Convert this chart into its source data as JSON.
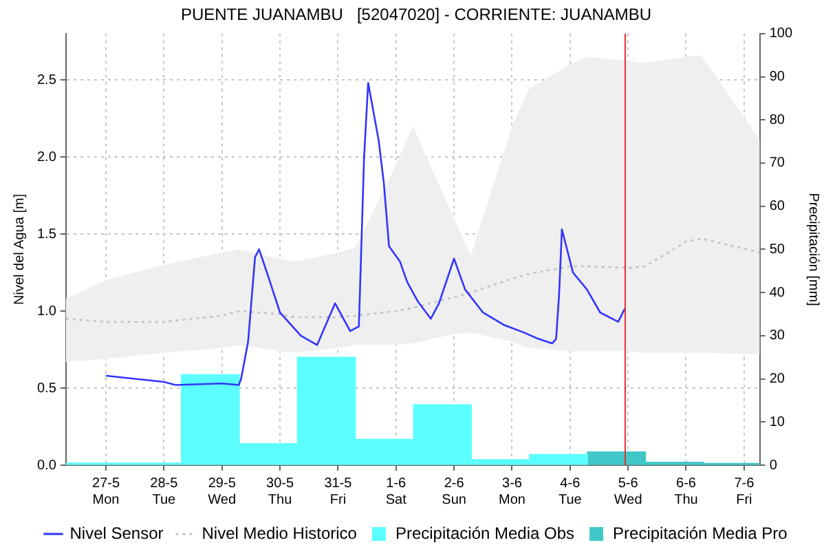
{
  "chart_data": {
    "type": "line",
    "title": "PUENTE JUANAMBU   [52047020] - CORRIENTE: JUANAMBU",
    "ylabel": "Nivel del Agua [m]",
    "y2label": "Precipitación [mm]",
    "xlim": [
      "--05-26T07:26",
      "--06-07T06:29"
    ],
    "xticks": [
      {
        "value": "--05-27",
        "label": "27-5\nMon"
      },
      {
        "value": "--05-28",
        "label": "28-5\nTue"
      },
      {
        "value": "--05-29",
        "label": "29-5\nWed"
      },
      {
        "value": "--05-30",
        "label": "30-5\nThu"
      },
      {
        "value": "--05-31",
        "label": "31-5\nFri"
      },
      {
        "value": "--06-01",
        "label": "1-6\nSat"
      },
      {
        "value": "--06-02",
        "label": "2-6\nSun"
      },
      {
        "value": "--06-03",
        "label": "3-6\nMon"
      },
      {
        "value": "--06-04",
        "label": "4-6\nTue"
      },
      {
        "value": "--06-05",
        "label": "5-6\nWed"
      },
      {
        "value": "--06-06",
        "label": "6-6\nThu"
      },
      {
        "value": "--06-07",
        "label": "7-6\nFri"
      }
    ],
    "ylim": [
      0,
      2.8
    ],
    "yticks": [
      {
        "value": 0,
        "label": "0.0"
      },
      {
        "value": 0.5,
        "label": "0.5"
      },
      {
        "value": 1,
        "label": "1.0"
      },
      {
        "value": 1.5,
        "label": "1.5"
      },
      {
        "value": 2,
        "label": "2.0"
      },
      {
        "value": 2.5,
        "label": "2.5"
      }
    ],
    "y2lim": [
      0,
      100
    ],
    "y2ticks": [
      0,
      10,
      20,
      30,
      40,
      50,
      60,
      70,
      80,
      90,
      100
    ],
    "grid": true,
    "legend": "bottom",
    "marker": "none",
    "ref_lines": [
      {
        "axis": "x",
        "value": "--06-04T22:48",
        "color": "#e03030"
      }
    ],
    "series": [
      {
        "name": "Nivel Sensor",
        "color": "#3333ff",
        "line_style": "solid",
        "x": [
          "--05-27T00:00",
          "--05-28T00:00",
          "--05-28T04:48",
          "--05-29T00:00",
          "--05-29T06:58",
          "--05-29T07:55",
          "--05-29T10:48",
          "--05-29T13:41",
          "--05-29T15:22",
          "--05-29T19:26",
          "--05-30T00:00",
          "--05-30T08:38",
          "--05-30T15:22",
          "--05-30T22:48",
          "--05-31T05:02",
          "--05-31T08:38",
          "--05-31T10:48",
          "--05-31T12:29",
          "--05-31T16:48",
          "--05-31T18:58",
          "--05-31T21:07",
          "--06-01T01:41",
          "--06-01T04:34",
          "--06-01T09:07",
          "--06-01T14:24",
          "--06-01T17:46",
          "--06-02T00:00",
          "--06-02T04:34",
          "--06-02T12:00",
          "--06-02T20:38",
          "--06-03T05:02",
          "--06-03T10:48",
          "--06-03T16:34",
          "--06-03T18:14",
          "--06-03T19:26",
          "--06-03T20:38",
          "--06-04T01:12",
          "--06-04T06:58",
          "--06-04T12:29",
          "--06-04T19:55",
          "--06-04T22:48"
        ],
        "values": [
          0.58,
          0.54,
          0.52,
          0.53,
          0.52,
          0.56,
          0.8,
          1.35,
          1.4,
          1.21,
          0.99,
          0.84,
          0.78,
          1.05,
          0.87,
          0.9,
          2.0,
          2.48,
          2.11,
          1.83,
          1.42,
          1.32,
          1.19,
          1.06,
          0.95,
          1.05,
          1.34,
          1.14,
          0.99,
          0.91,
          0.86,
          0.82,
          0.79,
          0.82,
          1.1,
          1.53,
          1.25,
          1.14,
          0.99,
          0.93,
          1.02
        ]
      },
      {
        "name": "Nivel Medio Historico",
        "color": "#c0c0c0",
        "line_style": "dotted",
        "x": [
          "--05-26T07:26",
          "--05-27T00:00",
          "--05-28T00:00",
          "--05-29T00:00",
          "--05-29T07:12",
          "--05-30T00:00",
          "--05-30T06:14",
          "--05-31T00:00",
          "--05-31T07:12",
          "--06-01T00:00",
          "--06-01T06:58",
          "--06-02T00:00",
          "--06-02T06:58",
          "--06-03T00:00",
          "--06-03T06:58",
          "--06-04T00:00",
          "--06-04T06:58",
          "--06-05T00:00",
          "--06-05T06:58",
          "--06-06T00:00",
          "--06-06T06:14",
          "--06-07T06:29"
        ],
        "values": [
          0.95,
          0.93,
          0.93,
          0.97,
          1.0,
          0.98,
          0.96,
          0.96,
          0.97,
          1.0,
          1.02,
          1.09,
          1.12,
          1.21,
          1.24,
          1.29,
          1.29,
          1.28,
          1.29,
          1.45,
          1.47,
          1.38
        ],
        "lower": [
          0.67,
          0.69,
          0.73,
          0.76,
          0.78,
          0.74,
          0.73,
          0.76,
          0.78,
          0.78,
          0.79,
          0.85,
          0.86,
          0.8,
          0.76,
          0.74,
          0.74,
          0.74,
          0.73,
          0.73,
          0.73,
          0.72
        ],
        "upper": [
          1.08,
          1.2,
          1.3,
          1.38,
          1.4,
          1.34,
          1.32,
          1.38,
          1.41,
          1.95,
          2.2,
          1.6,
          1.36,
          2.2,
          2.44,
          2.6,
          2.65,
          2.62,
          2.61,
          2.65,
          2.66,
          2.11
        ]
      },
      {
        "name": "Precipitación Media Obs",
        "type": "bar",
        "axis": "y2",
        "color": "#5cffff",
        "x": [
          "--05-26T19:12",
          "--05-27T19:12",
          "--05-28T19:12",
          "--05-29T19:12",
          "--05-30T19:12",
          "--05-31T19:12",
          "--06-01T19:12",
          "--06-02T19:12",
          "--06-03T19:12"
        ],
        "values": [
          0.5,
          0.5,
          21,
          5,
          25,
          6,
          14,
          1.3,
          2.5
        ]
      },
      {
        "name": "Precipitación Media Pro",
        "type": "bar",
        "axis": "y2",
        "color": "#40c8c8",
        "x": [
          "--06-04T19:12",
          "--06-05T19:12",
          "--06-06T19:12"
        ],
        "values": [
          3.1,
          0.7,
          0.4
        ]
      }
    ]
  }
}
